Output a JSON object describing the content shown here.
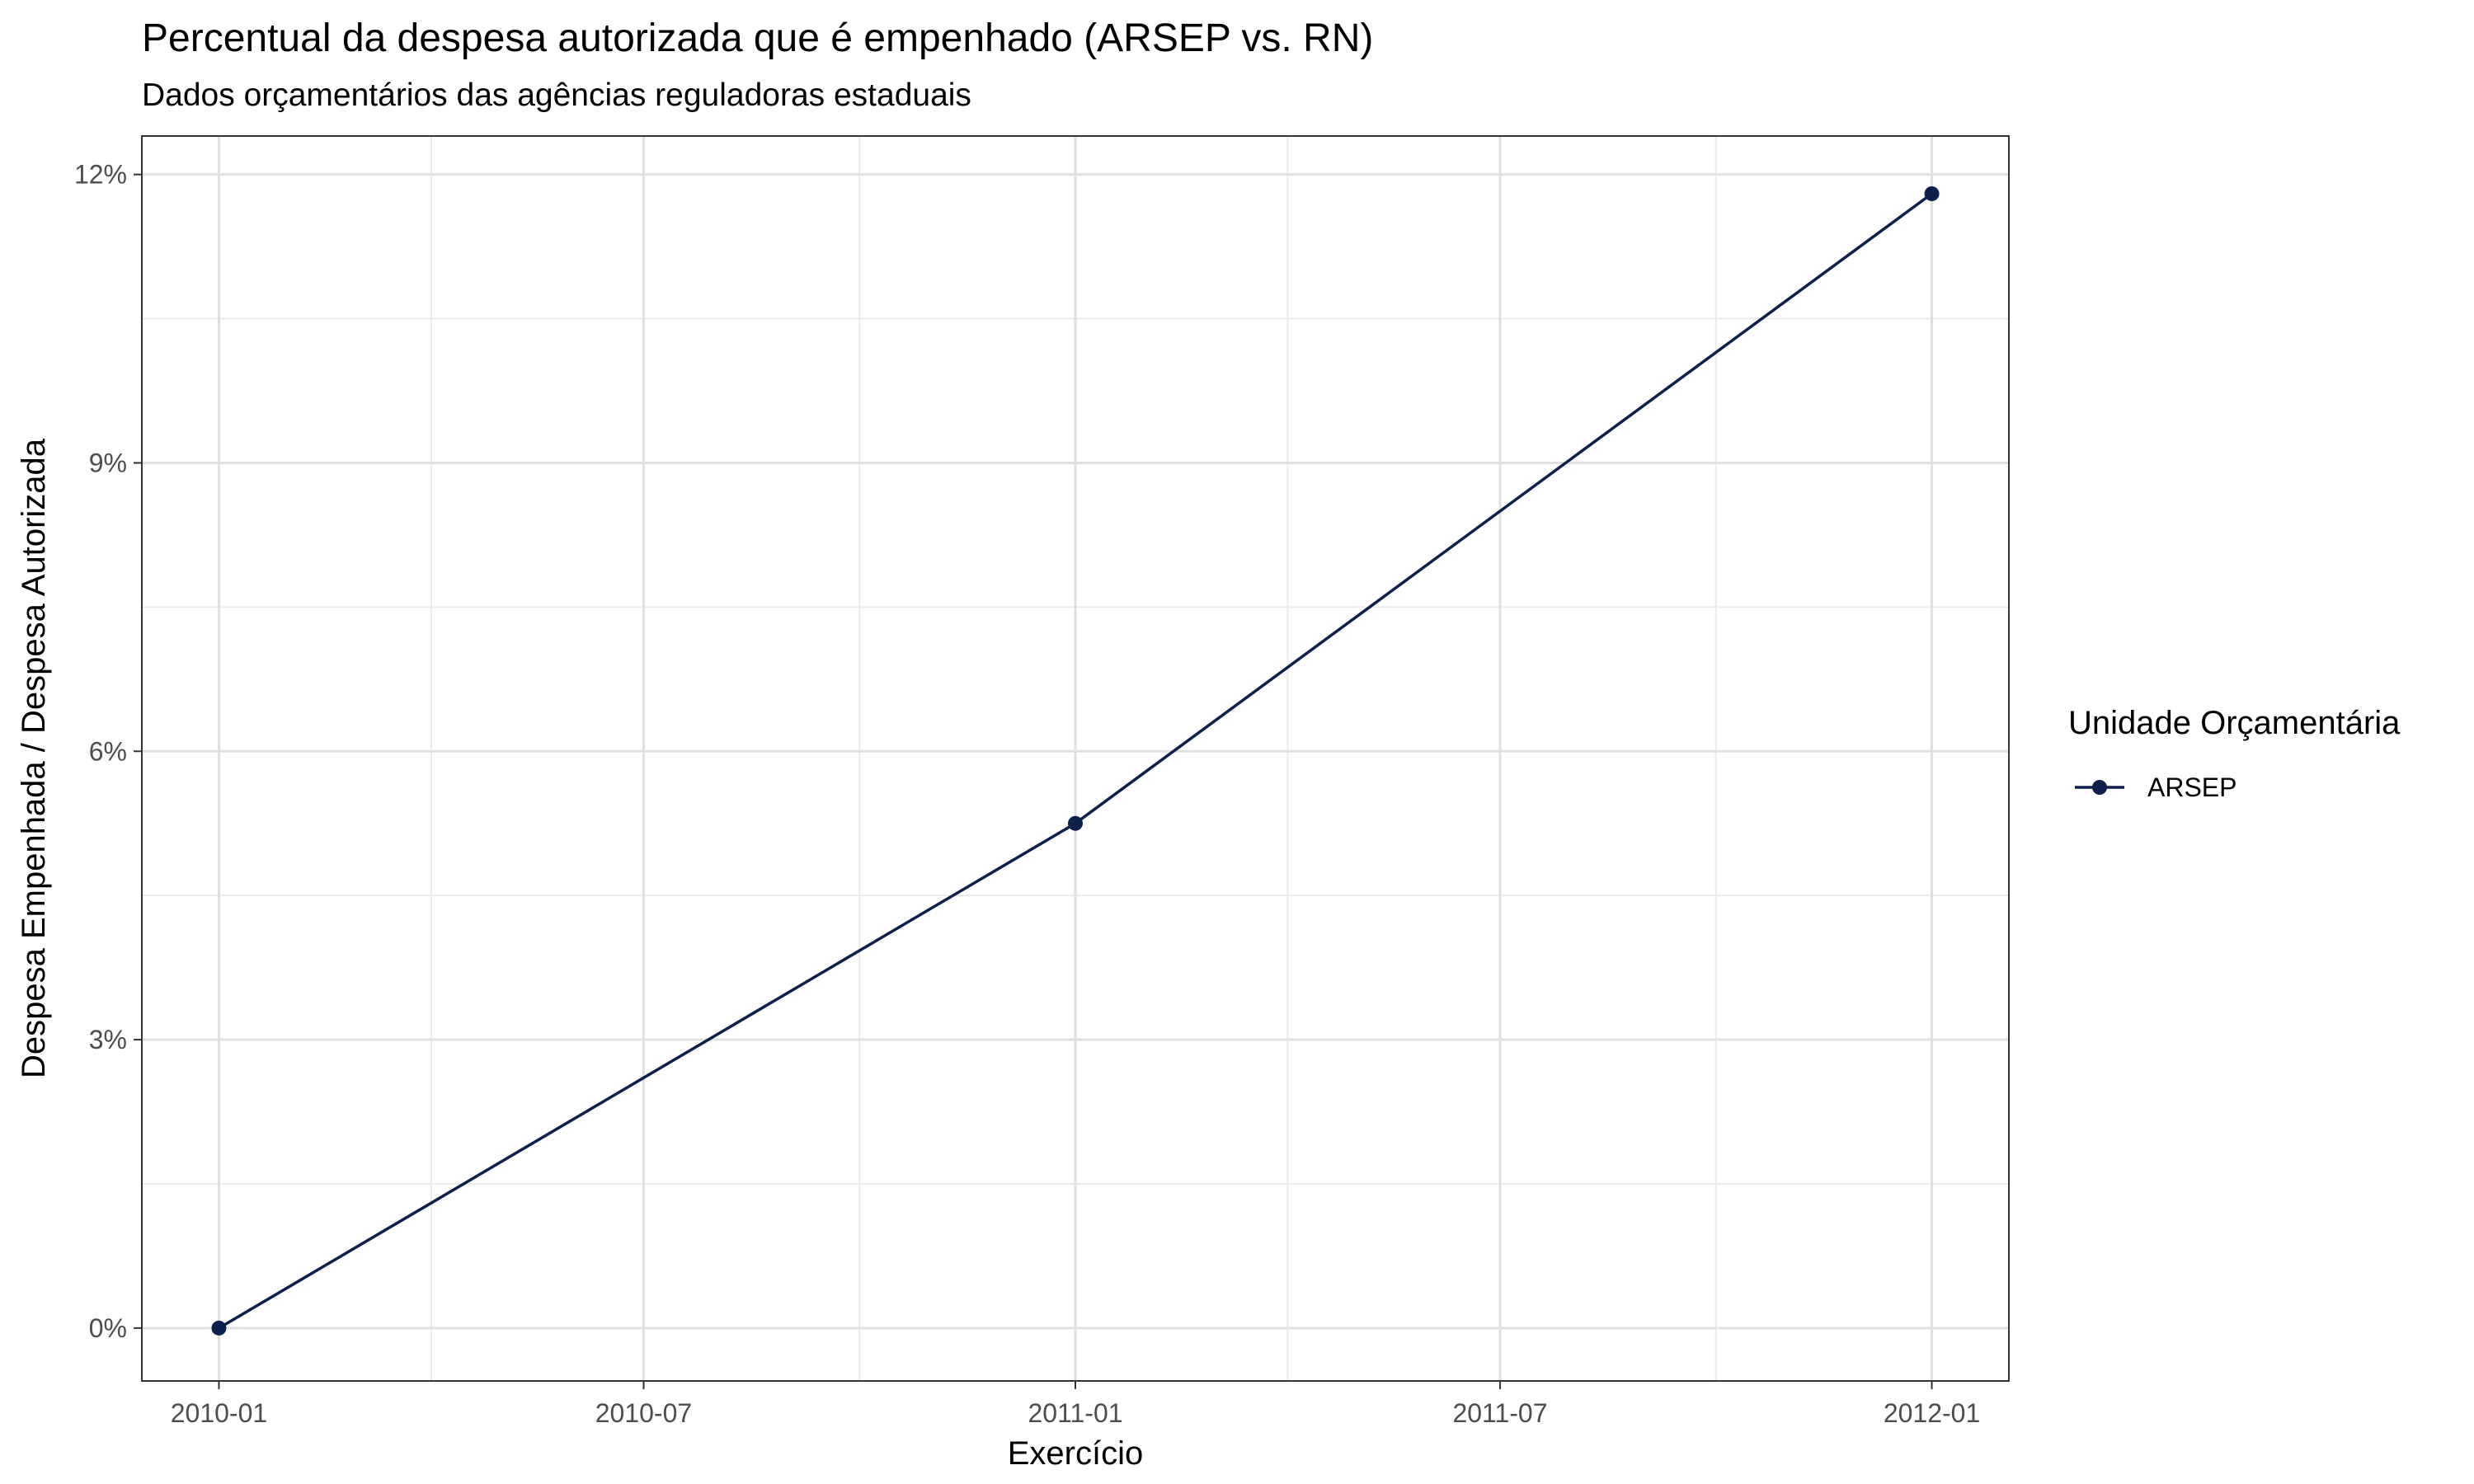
{
  "chart_data": {
    "type": "line",
    "title": "Percentual da despesa autorizada que é empenhado (ARSEP vs. RN)",
    "subtitle": "Dados orçamentários das agências reguladoras estaduais",
    "xlabel": "Exercício",
    "ylabel": "Despesa Empenhada / Despesa Autorizada",
    "x_ticks": [
      "2010-01",
      "2010-07",
      "2011-01",
      "2011-07",
      "2012-01"
    ],
    "y_ticks": [
      "0%",
      "3%",
      "6%",
      "9%",
      "12%"
    ],
    "ylim": [
      -0.55,
      12.4
    ],
    "grid": true,
    "legend": {
      "title": "Unidade Orçamentária",
      "position": "right"
    },
    "series": [
      {
        "name": "ARSEP",
        "color": "#0c1f4d",
        "points": [
          {
            "x": "2010-01-01",
            "y": 0.0
          },
          {
            "x": "2011-01-01",
            "y": 5.25
          },
          {
            "x": "2012-01-01",
            "y": 11.8
          }
        ]
      }
    ]
  }
}
